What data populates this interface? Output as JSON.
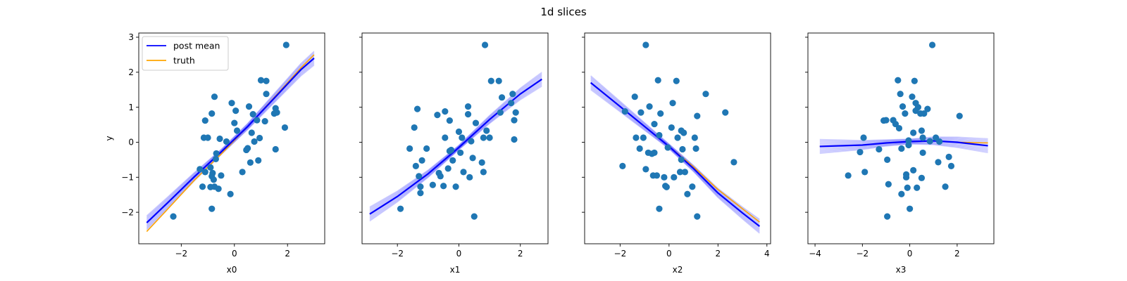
{
  "figure": {
    "title": "1d slices"
  },
  "colors": {
    "scatter": "#1f77b4",
    "post_mean": "#0000ff",
    "truth": "#ffa500"
  },
  "legend": {
    "placement": "upper left",
    "items": [
      "post mean",
      "truth"
    ]
  },
  "chart_data": [
    {
      "type": "scatter",
      "title": "",
      "xlabel": "x0",
      "ylabel": "y",
      "xlim": [
        -3.6,
        3.4
      ],
      "ylim": [
        -2.9,
        3.12
      ],
      "xticks": [
        "−2",
        "0",
        "2"
      ],
      "yticks": [
        "−2",
        "−1",
        "0",
        "1",
        "2",
        "3"
      ],
      "legend": true,
      "points": [
        [
          -2.3,
          -2.12
        ],
        [
          -1.3,
          -0.77
        ],
        [
          -1.2,
          -1.27
        ],
        [
          -1.1,
          -0.85
        ],
        [
          -1.15,
          0.13
        ],
        [
          -1.0,
          0.13
        ],
        [
          -0.9,
          -1.28
        ],
        [
          -0.85,
          -0.97
        ],
        [
          -0.82,
          -0.88
        ],
        [
          -0.78,
          -1.07
        ],
        [
          -0.75,
          -1.27
        ],
        [
          -0.7,
          -0.48
        ],
        [
          -0.68,
          -0.32
        ],
        [
          -0.6,
          -1.33
        ],
        [
          -0.55,
          0.1
        ],
        [
          -0.5,
          -0.95
        ],
        [
          -0.75,
          1.3
        ],
        [
          -0.85,
          0.82
        ],
        [
          -1.1,
          0.62
        ],
        [
          -0.9,
          -0.72
        ],
        [
          -0.3,
          0.02
        ],
        [
          -0.15,
          -1.48
        ],
        [
          -0.1,
          1.12
        ],
        [
          0.0,
          0.55
        ],
        [
          0.05,
          0.9
        ],
        [
          0.1,
          0.33
        ],
        [
          0.3,
          -0.85
        ],
        [
          0.45,
          -0.22
        ],
        [
          0.5,
          -0.17
        ],
        [
          0.55,
          1.02
        ],
        [
          0.6,
          -0.58
        ],
        [
          0.65,
          0.27
        ],
        [
          0.7,
          0.8
        ],
        [
          0.75,
          0.02
        ],
        [
          0.85,
          0.63
        ],
        [
          0.9,
          -0.52
        ],
        [
          0.95,
          0.12
        ],
        [
          1.0,
          1.77
        ],
        [
          1.15,
          0.6
        ],
        [
          1.2,
          1.75
        ],
        [
          1.2,
          1.38
        ],
        [
          1.5,
          0.82
        ],
        [
          1.55,
          0.97
        ],
        [
          1.55,
          -0.2
        ],
        [
          1.6,
          0.85
        ],
        [
          1.95,
          2.78
        ],
        [
          1.9,
          0.42
        ],
        [
          -0.85,
          -1.9
        ]
      ],
      "series": [
        {
          "name": "post mean",
          "x": [
            -3.3,
            -2.5,
            -1.5,
            -0.5,
            0.5,
            1.5,
            2.5,
            3.0
          ],
          "y": [
            -2.3,
            -1.72,
            -0.98,
            -0.28,
            0.45,
            1.26,
            2.07,
            2.4
          ]
        },
        {
          "name": "truth",
          "x": [
            -3.3,
            -2.5,
            -1.5,
            -0.5,
            0.5,
            1.5,
            2.5,
            3.0
          ],
          "y": [
            -2.55,
            -1.9,
            -1.08,
            -0.34,
            0.45,
            1.28,
            2.12,
            2.5
          ]
        }
      ]
    },
    {
      "type": "scatter",
      "title": "",
      "xlabel": "x1",
      "ylabel": "",
      "xlim": [
        -3.15,
        2.9
      ],
      "ylim": [
        -2.9,
        3.12
      ],
      "xticks": [
        "−2",
        "0",
        "2"
      ],
      "yticks": [],
      "legend": false,
      "points": [
        [
          -1.9,
          -1.9
        ],
        [
          -1.6,
          -0.18
        ],
        [
          -1.45,
          0.42
        ],
        [
          -1.4,
          -0.68
        ],
        [
          -1.35,
          0.95
        ],
        [
          -1.3,
          -0.97
        ],
        [
          -1.25,
          -1.27
        ],
        [
          -1.25,
          -1.45
        ],
        [
          -1.2,
          -0.52
        ],
        [
          -1.05,
          -0.18
        ],
        [
          -0.85,
          -1.22
        ],
        [
          -0.7,
          0.78
        ],
        [
          -0.65,
          -0.88
        ],
        [
          -0.6,
          -0.97
        ],
        [
          -0.5,
          -1.25
        ],
        [
          -0.45,
          0.13
        ],
        [
          -0.45,
          0.88
        ],
        [
          -0.35,
          -0.75
        ],
        [
          -0.3,
          -0.25
        ],
        [
          -0.3,
          0.62
        ],
        [
          -0.25,
          -0.22
        ],
        [
          -0.2,
          -0.52
        ],
        [
          -0.1,
          -1.27
        ],
        [
          0.0,
          0.3
        ],
        [
          0.05,
          -0.3
        ],
        [
          0.1,
          0.13
        ],
        [
          0.15,
          -0.85
        ],
        [
          0.3,
          1.02
        ],
        [
          0.3,
          0.8
        ],
        [
          0.35,
          -1.0
        ],
        [
          0.4,
          0.03
        ],
        [
          0.45,
          -0.45
        ],
        [
          0.5,
          -2.12
        ],
        [
          0.55,
          0.55
        ],
        [
          0.75,
          -0.58
        ],
        [
          0.8,
          0.13
        ],
        [
          0.8,
          -0.85
        ],
        [
          0.85,
          2.78
        ],
        [
          0.9,
          0.33
        ],
        [
          1.0,
          0.13
        ],
        [
          1.05,
          1.75
        ],
        [
          1.3,
          1.75
        ],
        [
          1.35,
          0.85
        ],
        [
          1.4,
          1.28
        ],
        [
          1.7,
          1.12
        ],
        [
          1.75,
          1.38
        ],
        [
          1.8,
          0.08
        ],
        [
          1.8,
          0.63
        ],
        [
          1.85,
          0.85
        ]
      ],
      "series": [
        {
          "name": "post mean",
          "x": [
            -2.9,
            -2.0,
            -1.0,
            0.0,
            1.0,
            2.0,
            2.7
          ],
          "y": [
            -2.05,
            -1.55,
            -0.9,
            -0.15,
            0.65,
            1.38,
            1.8
          ]
        },
        {
          "name": "truth",
          "x": [
            -2.9,
            -2.0,
            -1.0,
            0.0,
            1.0,
            2.0,
            2.7
          ],
          "y": [
            -2.05,
            -1.55,
            -0.9,
            -0.15,
            0.65,
            1.38,
            1.8
          ]
        }
      ]
    },
    {
      "type": "scatter",
      "title": "",
      "xlabel": "x2",
      "ylabel": "",
      "xlim": [
        -3.45,
        4.15
      ],
      "ylim": [
        -2.9,
        3.12
      ],
      "xticks": [
        "−2",
        "0",
        "2",
        "4"
      ],
      "yticks": [],
      "legend": false,
      "points": [
        [
          -1.9,
          -0.68
        ],
        [
          -1.8,
          0.88
        ],
        [
          -1.4,
          1.3
        ],
        [
          -1.35,
          0.13
        ],
        [
          -1.2,
          -0.18
        ],
        [
          -1.15,
          0.85
        ],
        [
          -1.05,
          0.13
        ],
        [
          -0.95,
          2.78
        ],
        [
          -0.95,
          -0.77
        ],
        [
          -0.85,
          -0.3
        ],
        [
          -0.8,
          1.02
        ],
        [
          -0.7,
          -0.33
        ],
        [
          -0.65,
          -0.95
        ],
        [
          -0.6,
          0.52
        ],
        [
          -0.5,
          -0.95
        ],
        [
          -0.45,
          1.77
        ],
        [
          -0.4,
          0.2
        ],
        [
          -0.4,
          -1.9
        ],
        [
          -0.35,
          0.82
        ],
        [
          -0.2,
          -1.0
        ],
        [
          -0.15,
          -1.25
        ],
        [
          -0.1,
          -1.28
        ],
        [
          -0.05,
          -0.15
        ],
        [
          0.1,
          0.42
        ],
        [
          0.15,
          1.12
        ],
        [
          0.2,
          -1.0
        ],
        [
          0.3,
          1.75
        ],
        [
          0.35,
          0.13
        ],
        [
          0.45,
          -0.85
        ],
        [
          0.5,
          0.33
        ],
        [
          0.5,
          -0.5
        ],
        [
          0.55,
          -0.2
        ],
        [
          0.6,
          0.27
        ],
        [
          0.65,
          -0.85
        ],
        [
          0.75,
          -1.48
        ],
        [
          0.95,
          -1.27
        ],
        [
          1.05,
          0.13
        ],
        [
          1.1,
          -0.18
        ],
        [
          1.15,
          -2.12
        ],
        [
          1.15,
          0.75
        ],
        [
          1.5,
          1.38
        ],
        [
          2.3,
          0.85
        ],
        [
          2.65,
          -0.57
        ],
        [
          -0.6,
          -0.3
        ]
      ],
      "series": [
        {
          "name": "post mean",
          "x": [
            -3.2,
            -2.0,
            -1.0,
            0.0,
            1.0,
            2.0,
            3.0,
            3.7
          ],
          "y": [
            1.7,
            1.02,
            0.45,
            -0.12,
            -0.75,
            -1.45,
            -2.02,
            -2.4
          ]
        },
        {
          "name": "truth",
          "x": [
            -3.2,
            -2.0,
            -1.0,
            0.0,
            1.0,
            2.0,
            3.0,
            3.7
          ],
          "y": [
            1.7,
            1.02,
            0.45,
            -0.12,
            -0.7,
            -1.35,
            -1.9,
            -2.28
          ]
        }
      ]
    },
    {
      "type": "scatter",
      "title": "",
      "xlabel": "x3",
      "ylabel": "",
      "xlim": [
        -4.3,
        3.55
      ],
      "ylim": [
        -2.9,
        3.12
      ],
      "xticks": [
        "−4",
        "−2",
        "0",
        "2"
      ],
      "yticks": [],
      "legend": false,
      "points": [
        [
          -2.6,
          -0.95
        ],
        [
          -2.1,
          -0.28
        ],
        [
          -1.95,
          0.13
        ],
        [
          -1.9,
          -0.85
        ],
        [
          -1.3,
          -0.2
        ],
        [
          -1.1,
          0.62
        ],
        [
          -1.0,
          0.63
        ],
        [
          -0.95,
          -0.5
        ],
        [
          -0.9,
          -1.2
        ],
        [
          -0.95,
          -2.12
        ],
        [
          -0.7,
          0.63
        ],
        [
          -0.6,
          0.52
        ],
        [
          -0.5,
          1.77
        ],
        [
          -0.45,
          0.4
        ],
        [
          -0.4,
          1.38
        ],
        [
          -0.35,
          -0.18
        ],
        [
          -0.35,
          -1.48
        ],
        [
          -0.3,
          1.02
        ],
        [
          -0.2,
          0.82
        ],
        [
          -0.15,
          -0.92
        ],
        [
          -0.15,
          -1.0
        ],
        [
          -0.1,
          -1.3
        ],
        [
          -0.05,
          0.05
        ],
        [
          -0.05,
          -0.08
        ],
        [
          -0.0,
          -1.9
        ],
        [
          0.1,
          1.3
        ],
        [
          0.15,
          0.27
        ],
        [
          0.15,
          -0.8
        ],
        [
          0.2,
          1.75
        ],
        [
          0.25,
          1.12
        ],
        [
          0.25,
          0.9
        ],
        [
          0.3,
          -1.3
        ],
        [
          0.35,
          1.0
        ],
        [
          0.45,
          0.82
        ],
        [
          0.5,
          -1.02
        ],
        [
          0.5,
          0.33
        ],
        [
          0.55,
          0.13
        ],
        [
          0.55,
          -0.3
        ],
        [
          0.6,
          0.82
        ],
        [
          0.75,
          0.95
        ],
        [
          0.85,
          0.03
        ],
        [
          0.95,
          2.78
        ],
        [
          1.1,
          0.13
        ],
        [
          1.2,
          -0.57
        ],
        [
          1.25,
          0.02
        ],
        [
          1.5,
          -1.27
        ],
        [
          1.65,
          -0.42
        ],
        [
          1.75,
          -0.68
        ],
        [
          2.1,
          0.75
        ]
      ],
      "series": [
        {
          "name": "post mean",
          "x": [
            -3.8,
            -2.0,
            -1.0,
            0.0,
            1.0,
            2.0,
            3.3
          ],
          "y": [
            -0.12,
            -0.08,
            -0.02,
            0.02,
            0.04,
            0.0,
            -0.1
          ]
        },
        {
          "name": "truth",
          "x": [
            -3.8,
            -2.0,
            -1.0,
            0.0,
            1.0,
            2.0,
            3.3
          ],
          "y": [
            -0.12,
            -0.08,
            -0.02,
            0.02,
            0.04,
            0.0,
            -0.02
          ]
        }
      ]
    }
  ]
}
